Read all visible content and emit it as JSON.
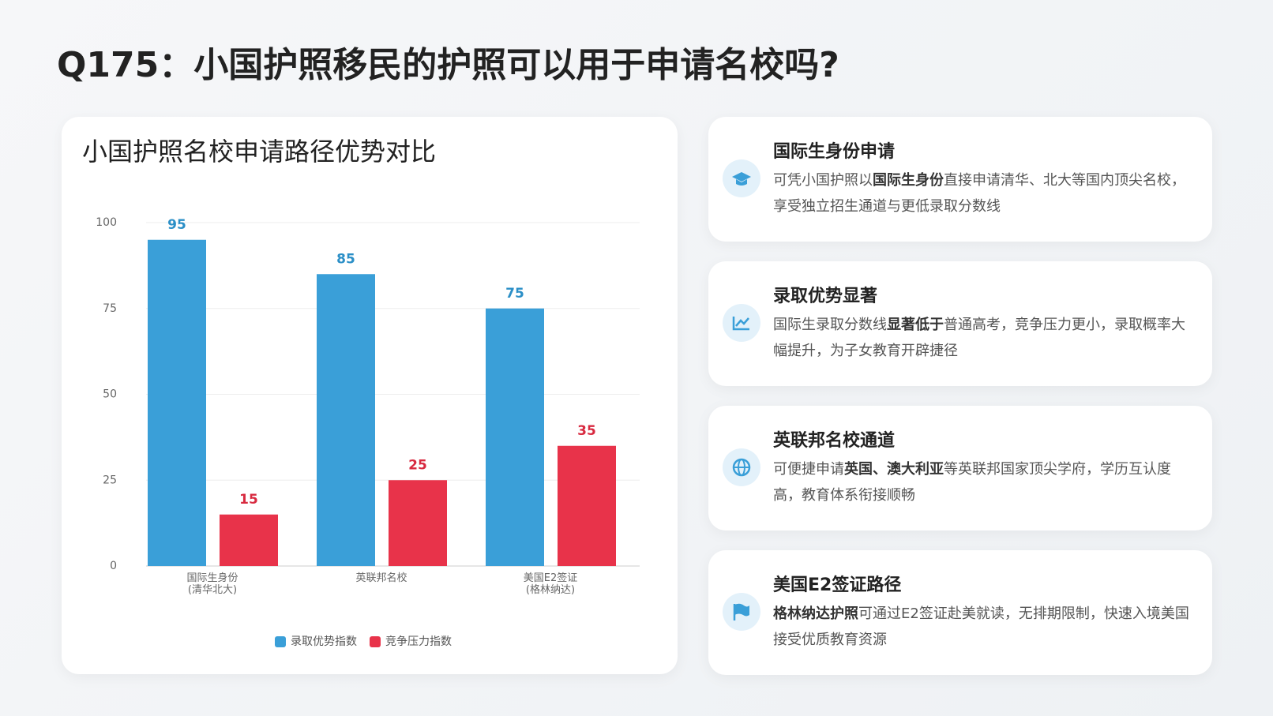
{
  "page_title": "Q175：小国护照移民的护照可以用于申请名校吗?",
  "chart_data": {
    "type": "bar",
    "title": "小国护照名校申请路径优势对比",
    "categories": [
      "国际生身份\n(清华北大)",
      "英联邦名校",
      "美国E2签证\n(格林纳达)"
    ],
    "series": [
      {
        "name": "录取优势指数",
        "color": "#3a9fd8",
        "label_color": "#2b8fc7",
        "values": [
          95,
          85,
          75
        ]
      },
      {
        "name": "竞争压力指数",
        "color": "#e8334a",
        "label_color": "#d82a40",
        "values": [
          15,
          25,
          35
        ]
      }
    ],
    "ylim": [
      0,
      100
    ],
    "yticks": [
      0,
      25,
      50,
      75,
      100
    ],
    "grid": true,
    "legend": "bottom"
  },
  "cards": [
    {
      "title": "国际生身份申请",
      "description": [
        {
          "text": "可凭小国护照以",
          "bold": false
        },
        {
          "text": "国际生身份",
          "bold": true
        },
        {
          "text": "直接申请清华、北大等国内顶尖名校，享受独立招生通道与更低录取分数线",
          "bold": false
        }
      ]
    },
    {
      "title": "录取优势显著",
      "description": [
        {
          "text": "国际生录取分数线",
          "bold": false
        },
        {
          "text": "显著低于",
          "bold": true
        },
        {
          "text": "普通高考，竞争压力更小，录取概率大幅提升，为子女教育开辟捷径",
          "bold": false
        }
      ]
    },
    {
      "title": "英联邦名校通道",
      "description": [
        {
          "text": "可便捷申请",
          "bold": false
        },
        {
          "text": "英国、澳大利亚",
          "bold": true
        },
        {
          "text": "等英联邦国家顶尖学府，学历互认度高，教育体系衔接顺畅",
          "bold": false
        }
      ]
    },
    {
      "title": "美国E2签证路径",
      "description": [
        {
          "text": "格林纳达护照",
          "bold": true
        },
        {
          "text": "可通过E2签证赴美就读，无排期限制，快速入境美国接受优质教育资源",
          "bold": false
        }
      ]
    }
  ]
}
